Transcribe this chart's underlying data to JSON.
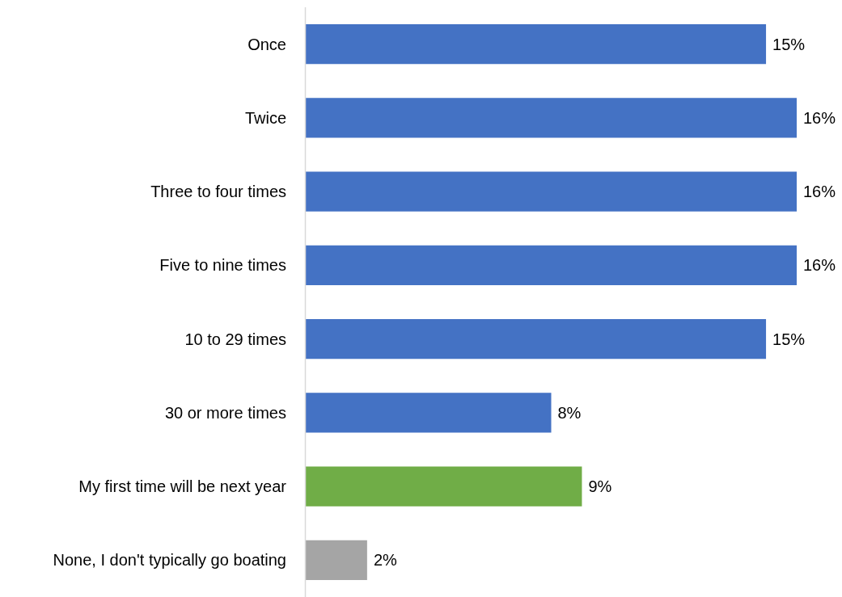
{
  "chart_data": {
    "type": "bar",
    "orientation": "horizontal",
    "categories": [
      "Once",
      "Twice",
      "Three to four times",
      "Five to nine times",
      "10 to 29 times",
      "30 or more times",
      "My first time will be next year",
      "None, I don't typically go boating"
    ],
    "values": [
      15,
      16,
      16,
      16,
      15,
      8,
      9,
      2
    ],
    "colors": [
      "#4472c4",
      "#4472c4",
      "#4472c4",
      "#4472c4",
      "#4472c4",
      "#4472c4",
      "#70ad47",
      "#a5a5a5"
    ],
    "value_labels": [
      "15%",
      "16%",
      "16%",
      "16%",
      "15%",
      "8%",
      "9%",
      "2%"
    ]
  }
}
